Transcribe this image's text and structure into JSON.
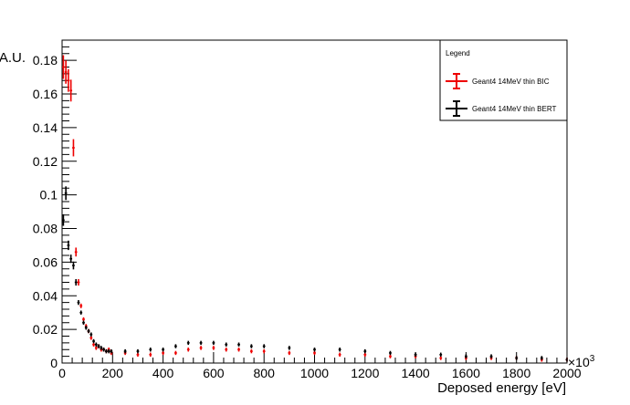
{
  "chart_data": {
    "type": "line",
    "title": "",
    "xlabel": "Deposed energy [eV]",
    "ylabel": "A.U.",
    "x_multiplier_label": "×10",
    "x_multiplier_exponent": "3",
    "xlim": [
      0,
      2000
    ],
    "ylim": [
      0,
      0.192
    ],
    "x_ticks": [
      0,
      200,
      400,
      600,
      800,
      1000,
      1200,
      1400,
      1600,
      1800,
      2000
    ],
    "x_tick_labels": [
      "0",
      "200",
      "400",
      "600",
      "800",
      "1000",
      "1200",
      "1400",
      "1600",
      "1800",
      "2000"
    ],
    "y_ticks": [
      0,
      0.02,
      0.04,
      0.06,
      0.08,
      0.1,
      0.12,
      0.14,
      0.16,
      0.18
    ],
    "y_tick_labels": [
      "0",
      "0.02",
      "0.04",
      "0.06",
      "0.08",
      "0.1",
      "0.12",
      "0.14",
      "0.16",
      "0.18"
    ],
    "grid": false,
    "legend": {
      "title": "Legend",
      "placement": "top-right",
      "entries": [
        "Geant4 14MeV thin BIC",
        "Geant4 14MeV thin BERT"
      ]
    },
    "bin_width": 10,
    "series": [
      {
        "name": "Geant4 14MeV thin BIC",
        "color": "#ee0000",
        "x": [
          5,
          15,
          25,
          35,
          45,
          55,
          65,
          75,
          85,
          95,
          105,
          115,
          125,
          135,
          145,
          155,
          165,
          175,
          185,
          195,
          250,
          300,
          350,
          400,
          450,
          500,
          550,
          600,
          650,
          700,
          750,
          800,
          900,
          1000,
          1100,
          1200,
          1300,
          1400,
          1500,
          1600,
          1700,
          1800,
          1900,
          2000
        ],
        "values": [
          0.176,
          0.173,
          0.168,
          0.162,
          0.128,
          0.066,
          0.048,
          0.034,
          0.026,
          0.022,
          0.019,
          0.015,
          0.011,
          0.009,
          0.01,
          0.008,
          0.008,
          0.007,
          0.008,
          0.006,
          0.006,
          0.005,
          0.005,
          0.006,
          0.006,
          0.008,
          0.009,
          0.009,
          0.008,
          0.008,
          0.007,
          0.007,
          0.006,
          0.006,
          0.005,
          0.005,
          0.004,
          0.004,
          0.003,
          0.003,
          0.003,
          0.003,
          0.002,
          0.002
        ]
      },
      {
        "name": "Geant4 14MeV thin BERT",
        "color": "#000000",
        "x": [
          5,
          15,
          25,
          35,
          45,
          55,
          65,
          75,
          85,
          95,
          105,
          115,
          125,
          135,
          145,
          155,
          165,
          175,
          185,
          195,
          250,
          300,
          350,
          400,
          450,
          500,
          550,
          600,
          650,
          700,
          750,
          800,
          900,
          1000,
          1100,
          1200,
          1300,
          1400,
          1500,
          1600,
          1700,
          1800,
          1900,
          2000
        ],
        "values": [
          0.085,
          0.101,
          0.07,
          0.062,
          0.058,
          0.048,
          0.036,
          0.03,
          0.024,
          0.021,
          0.019,
          0.017,
          0.013,
          0.011,
          0.01,
          0.009,
          0.008,
          0.007,
          0.007,
          0.007,
          0.007,
          0.007,
          0.008,
          0.008,
          0.01,
          0.012,
          0.012,
          0.012,
          0.011,
          0.011,
          0.01,
          0.01,
          0.009,
          0.008,
          0.008,
          0.007,
          0.006,
          0.005,
          0.005,
          0.004,
          0.004,
          0.003,
          0.003,
          0.002
        ]
      }
    ]
  }
}
